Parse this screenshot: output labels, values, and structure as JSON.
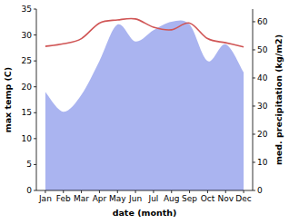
{
  "chart_data": {
    "type": "line",
    "x_label": "date (month)",
    "y_label": "max temp (C)",
    "y2_label": "med. precipitation (kg/m2)",
    "categories": [
      "Jan",
      "Feb",
      "Mar",
      "Apr",
      "May",
      "Jun",
      "Jul",
      "Aug",
      "Sep",
      "Oct",
      "Nov",
      "Dec"
    ],
    "ylim": [
      0,
      35
    ],
    "yticks": [
      0,
      5,
      10,
      15,
      20,
      25,
      30,
      35
    ],
    "y2lim": [
      0,
      64.5
    ],
    "y2ticks": [
      0,
      10,
      20,
      30,
      40,
      50,
      60
    ],
    "series": [
      {
        "type": "area",
        "axis": "y2",
        "color": "#aab4f0",
        "values": [
          35,
          28,
          34,
          46,
          59,
          53,
          57,
          60,
          59,
          46,
          52,
          42
        ]
      },
      {
        "type": "line",
        "axis": "y",
        "color": "#d05555",
        "values": [
          27.8,
          28.3,
          29.3,
          32.3,
          32.9,
          33.1,
          31.5,
          31.0,
          32.3,
          29.3,
          28.5,
          27.7
        ]
      }
    ]
  }
}
